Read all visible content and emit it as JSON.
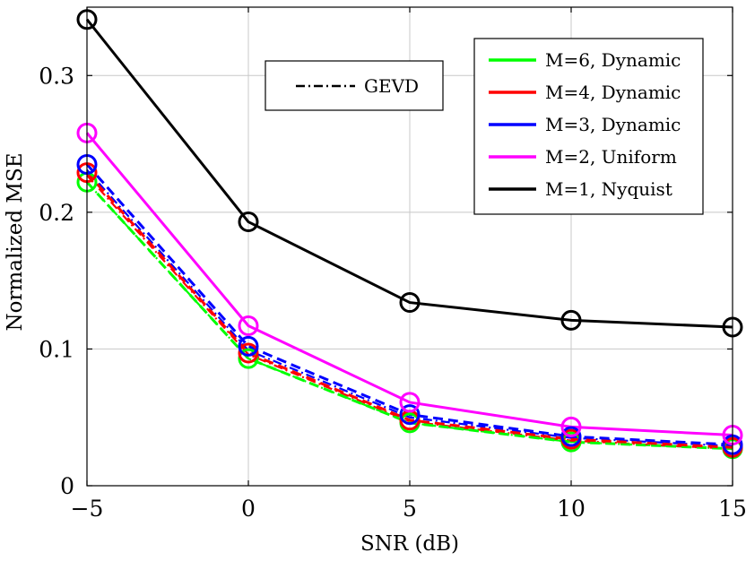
{
  "chart_data": {
    "type": "line",
    "title": "",
    "xlabel": "SNR (dB)",
    "ylabel": "Normalized MSE",
    "x": [
      -5,
      0,
      5,
      10,
      15
    ],
    "xlim": [
      -5,
      15
    ],
    "ylim": [
      0,
      0.35
    ],
    "xticks": [
      -5,
      0,
      5,
      10,
      15
    ],
    "xtick_labels": [
      "−5",
      "0",
      "5",
      "10",
      "15"
    ],
    "yticks": [
      0,
      0.1,
      0.2,
      0.3
    ],
    "ytick_labels": [
      "0",
      "0.1",
      "0.2",
      "0.3"
    ],
    "grid": true,
    "legend_position": "top-right",
    "series": [
      {
        "name": "M=6, Dynamic",
        "color": "#00ff00",
        "marker": "circle",
        "line": "solid",
        "values": [
          0.222,
          0.093,
          0.046,
          0.032,
          0.027
        ]
      },
      {
        "name": "M=4, Dynamic",
        "color": "#ff0000",
        "marker": "circle",
        "line": "solid",
        "values": [
          0.229,
          0.097,
          0.048,
          0.034,
          0.028
        ]
      },
      {
        "name": "M=3, Dynamic",
        "color": "#0000ff",
        "marker": "circle",
        "line": "solid",
        "values": [
          0.235,
          0.102,
          0.052,
          0.036,
          0.03
        ]
      },
      {
        "name": "M=2, Uniform",
        "color": "#ff00ff",
        "marker": "circle",
        "line": "solid",
        "values": [
          0.258,
          0.117,
          0.061,
          0.043,
          0.037
        ]
      },
      {
        "name": "M=1, Nyquist",
        "color": "#000000",
        "marker": "circle",
        "line": "solid",
        "values": [
          0.341,
          0.193,
          0.134,
          0.121,
          0.116
        ]
      }
    ],
    "gevd_series": [
      {
        "color": "#00ff00",
        "values": [
          0.222,
          0.093,
          0.046,
          0.032,
          0.027
        ]
      },
      {
        "color": "#ff0000",
        "values": [
          0.227,
          0.096,
          0.047,
          0.033,
          0.027
        ]
      },
      {
        "color": "#0000ff",
        "values": [
          0.231,
          0.099,
          0.05,
          0.035,
          0.029
        ]
      }
    ],
    "legend_gevd": {
      "label": "GEVD",
      "color": "#000000",
      "line": "dash-dot"
    }
  }
}
